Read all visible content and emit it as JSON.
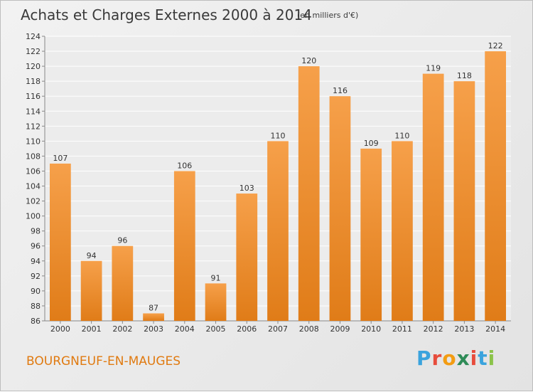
{
  "chart_data": {
    "type": "bar",
    "title": "Achats et Charges Externes 2000 à 2014",
    "subtitle": "(en milliers d'€)",
    "categories": [
      "2000",
      "2001",
      "2002",
      "2003",
      "2004",
      "2005",
      "2006",
      "2007",
      "2008",
      "2009",
      "2010",
      "2011",
      "2012",
      "2013",
      "2014"
    ],
    "values": [
      107,
      94,
      96,
      87,
      106,
      91,
      103,
      110,
      120,
      116,
      109,
      110,
      119,
      118,
      122
    ],
    "ylim": [
      86,
      124
    ],
    "yticks": [
      86,
      88,
      90,
      92,
      94,
      96,
      98,
      100,
      102,
      104,
      106,
      108,
      110,
      112,
      114,
      116,
      118,
      120,
      122,
      124
    ],
    "grid": true,
    "bar_color": "#f0922e"
  },
  "commune": "BOURGNEUF-EN-MAUGES",
  "logo": {
    "letters": [
      "P",
      "r",
      "o",
      "x",
      "i",
      "t",
      "i"
    ],
    "colors": [
      "#3aa3dd",
      "#e74c3c",
      "#f39c12",
      "#2e8b57",
      "#e74c3c",
      "#3aa3dd",
      "#8bc34a"
    ]
  }
}
